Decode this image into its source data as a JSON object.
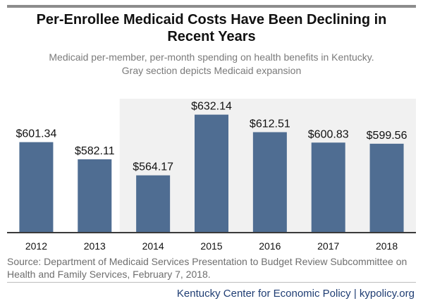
{
  "chart_data": {
    "type": "bar",
    "title": "Per-Enrollee Medicaid Costs Have Been Declining in Recent Years",
    "subtitle_lines": [
      "Medicaid per-member, per-month spending on health benefits in Kentucky.",
      "Gray section depicts Medicaid expansion"
    ],
    "categories": [
      "2012",
      "2013",
      "2014",
      "2015",
      "2016",
      "2017",
      "2018"
    ],
    "values": [
      601.34,
      582.11,
      564.17,
      632.14,
      612.51,
      600.83,
      599.56
    ],
    "value_labels": [
      "$601.34",
      "$582.11",
      "$564.17",
      "$632.14",
      "$612.51",
      "$600.83",
      "$599.56"
    ],
    "ylim": [
      500,
      650
    ],
    "shaded_range": [
      "2014",
      "2018"
    ],
    "grid": false,
    "legend": "none",
    "colors": {
      "bar": "#4f6d92",
      "shade": "#f1f1f1",
      "axis": "#3a3a3a"
    }
  },
  "source": {
    "line1": "Source: Department of Medicaid Services Presentation to Budget Review Subcommittee on",
    "line2": "Health and Family Services, February 7, 2018."
  },
  "footer": "Kentucky Center for Economic Policy | kypolicy.org"
}
